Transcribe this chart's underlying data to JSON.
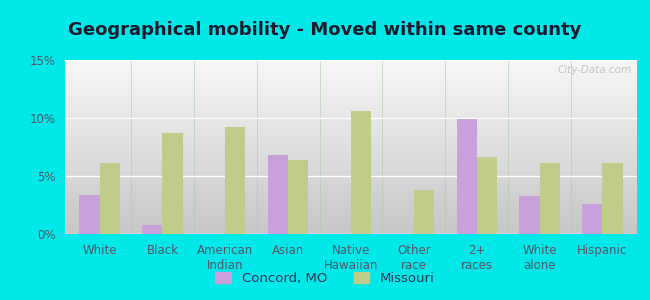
{
  "title": "Geographical mobility - Moved within same county",
  "categories": [
    "White",
    "Black",
    "American\nIndian",
    "Asian",
    "Native\nHawaiian",
    "Other\nrace",
    "2+\nraces",
    "White\nalone",
    "Hispanic"
  ],
  "concord_values": [
    3.4,
    0.8,
    0.0,
    6.8,
    0.0,
    0.0,
    9.9,
    3.3,
    2.6
  ],
  "missouri_values": [
    6.1,
    8.7,
    9.2,
    6.4,
    10.6,
    3.8,
    6.6,
    6.1,
    6.1
  ],
  "concord_color": "#c9a0dc",
  "missouri_color": "#bfcc8a",
  "outer_background": "#00e8e8",
  "ylim": [
    0,
    15
  ],
  "yticks": [
    0,
    5,
    10,
    15
  ],
  "ytick_labels": [
    "0%",
    "5%",
    "10%",
    "15%"
  ],
  "bar_width": 0.32,
  "legend_concord": "Concord, MO",
  "legend_missouri": "Missouri",
  "watermark": "City-Data.com",
  "title_fontsize": 13,
  "tick_fontsize": 8.5,
  "legend_fontsize": 9.5
}
